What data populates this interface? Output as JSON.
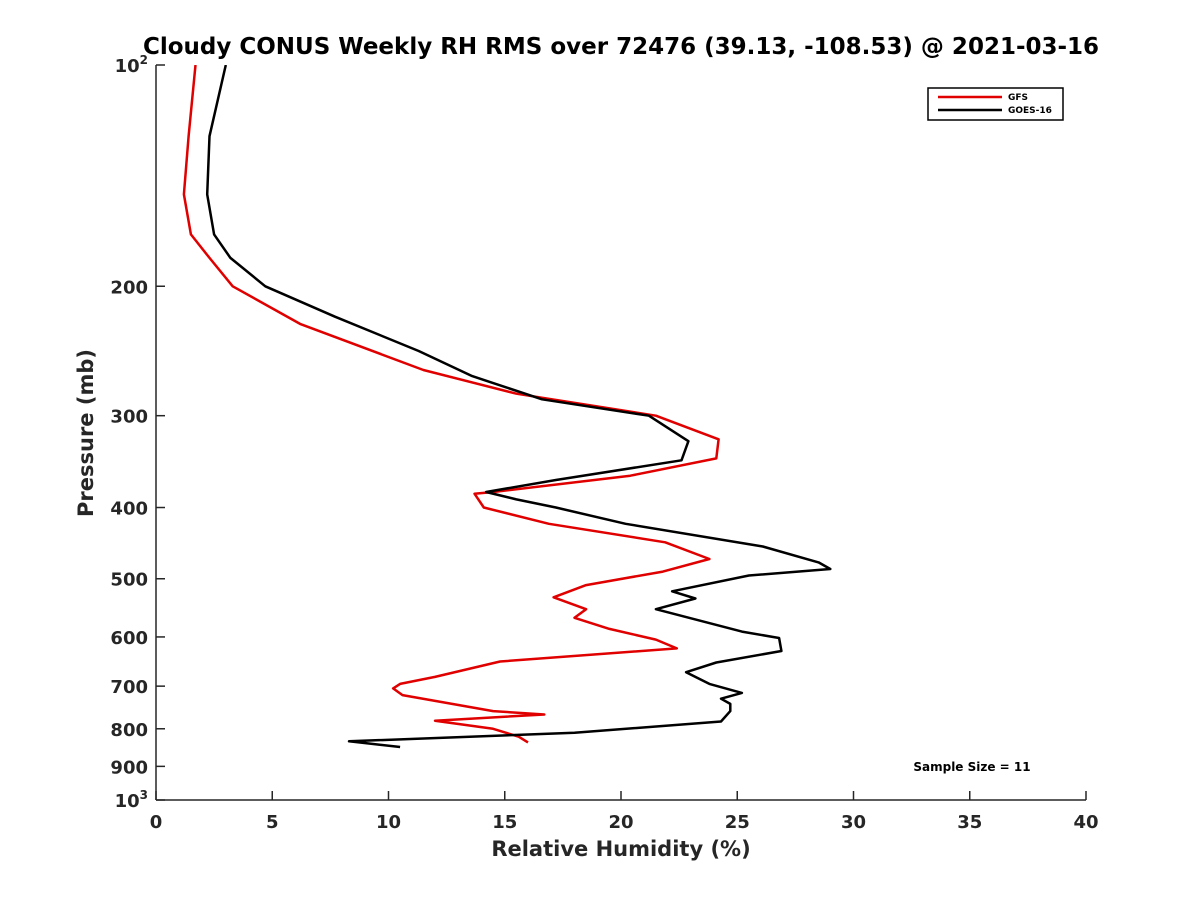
{
  "chart_data": {
    "type": "line",
    "title": "Cloudy CONUS Weekly RH RMS over 72476 (39.13, -108.53) @ 2021-03-16",
    "xlabel": "Relative Humidity (%)",
    "ylabel": "Pressure (mb)",
    "xlim": [
      0,
      40
    ],
    "ylim": [
      100,
      1000
    ],
    "y_scale": "log",
    "y_reversed": true,
    "x_ticks": [
      0,
      5,
      10,
      15,
      20,
      25,
      30,
      35,
      40
    ],
    "x_tick_labels": [
      "0",
      "5",
      "10",
      "15",
      "20",
      "25",
      "30",
      "35",
      "40"
    ],
    "y_ticks": [
      100,
      200,
      300,
      400,
      500,
      600,
      700,
      800,
      900,
      1000
    ],
    "y_tick_labels": [
      {
        "base": "10",
        "sup": "2"
      },
      {
        "base": "200",
        "sup": ""
      },
      {
        "base": "300",
        "sup": ""
      },
      {
        "base": "400",
        "sup": ""
      },
      {
        "base": "500",
        "sup": ""
      },
      {
        "base": "600",
        "sup": ""
      },
      {
        "base": "700",
        "sup": ""
      },
      {
        "base": "800",
        "sup": ""
      },
      {
        "base": "900",
        "sup": ""
      },
      {
        "base": "10",
        "sup": "3"
      }
    ],
    "grid": false,
    "legend_position": "top-right",
    "annotation": "Sample Size = 11",
    "series": [
      {
        "name": "GFS",
        "color": "#e00000",
        "points": [
          [
            1.7,
            100
          ],
          [
            1.4,
            125
          ],
          [
            1.2,
            150
          ],
          [
            1.5,
            170
          ],
          [
            2.3,
            183
          ],
          [
            3.3,
            200
          ],
          [
            6.2,
            225
          ],
          [
            11.5,
            260
          ],
          [
            15.5,
            280
          ],
          [
            21.5,
            300
          ],
          [
            24.2,
            323
          ],
          [
            24.1,
            343
          ],
          [
            20.4,
            362
          ],
          [
            14.5,
            381
          ],
          [
            13.7,
            383
          ],
          [
            14.1,
            400
          ],
          [
            16.9,
            421
          ],
          [
            21.9,
            446
          ],
          [
            23.8,
            470
          ],
          [
            21.8,
            489
          ],
          [
            18.5,
            510
          ],
          [
            17.1,
            530
          ],
          [
            18.5,
            550
          ],
          [
            18.0,
            565
          ],
          [
            19.5,
            585
          ],
          [
            21.5,
            605
          ],
          [
            22.4,
            622
          ],
          [
            14.8,
            648
          ],
          [
            12.0,
            680
          ],
          [
            10.5,
            695
          ],
          [
            10.2,
            705
          ],
          [
            10.6,
            720
          ],
          [
            14.5,
            757
          ],
          [
            16.7,
            765
          ],
          [
            12.0,
            780
          ],
          [
            14.5,
            800
          ],
          [
            15.6,
            820
          ],
          [
            16.0,
            835
          ]
        ]
      },
      {
        "name": "GOES-16",
        "color": "#000000",
        "points": [
          [
            3.0,
            100
          ],
          [
            2.3,
            125
          ],
          [
            2.2,
            150
          ],
          [
            2.5,
            170
          ],
          [
            3.2,
            183
          ],
          [
            4.7,
            200
          ],
          [
            7.7,
            220
          ],
          [
            11.3,
            245
          ],
          [
            13.6,
            265
          ],
          [
            16.6,
            285
          ],
          [
            21.2,
            300
          ],
          [
            22.9,
            325
          ],
          [
            22.6,
            345
          ],
          [
            17.2,
            367
          ],
          [
            14.2,
            381
          ],
          [
            15.5,
            390
          ],
          [
            17.2,
            400
          ],
          [
            20.2,
            421
          ],
          [
            26.1,
            452
          ],
          [
            28.5,
            475
          ],
          [
            29.0,
            485
          ],
          [
            25.5,
            495
          ],
          [
            22.2,
            520
          ],
          [
            23.2,
            532
          ],
          [
            21.5,
            550
          ],
          [
            25.2,
            590
          ],
          [
            26.8,
            602
          ],
          [
            26.9,
            627
          ],
          [
            24.1,
            650
          ],
          [
            22.8,
            670
          ],
          [
            23.8,
            695
          ],
          [
            25.2,
            715
          ],
          [
            24.3,
            728
          ],
          [
            24.7,
            740
          ],
          [
            24.7,
            757
          ],
          [
            24.3,
            782
          ],
          [
            18.0,
            810
          ],
          [
            8.3,
            832
          ],
          [
            10.5,
            847
          ]
        ]
      }
    ]
  }
}
